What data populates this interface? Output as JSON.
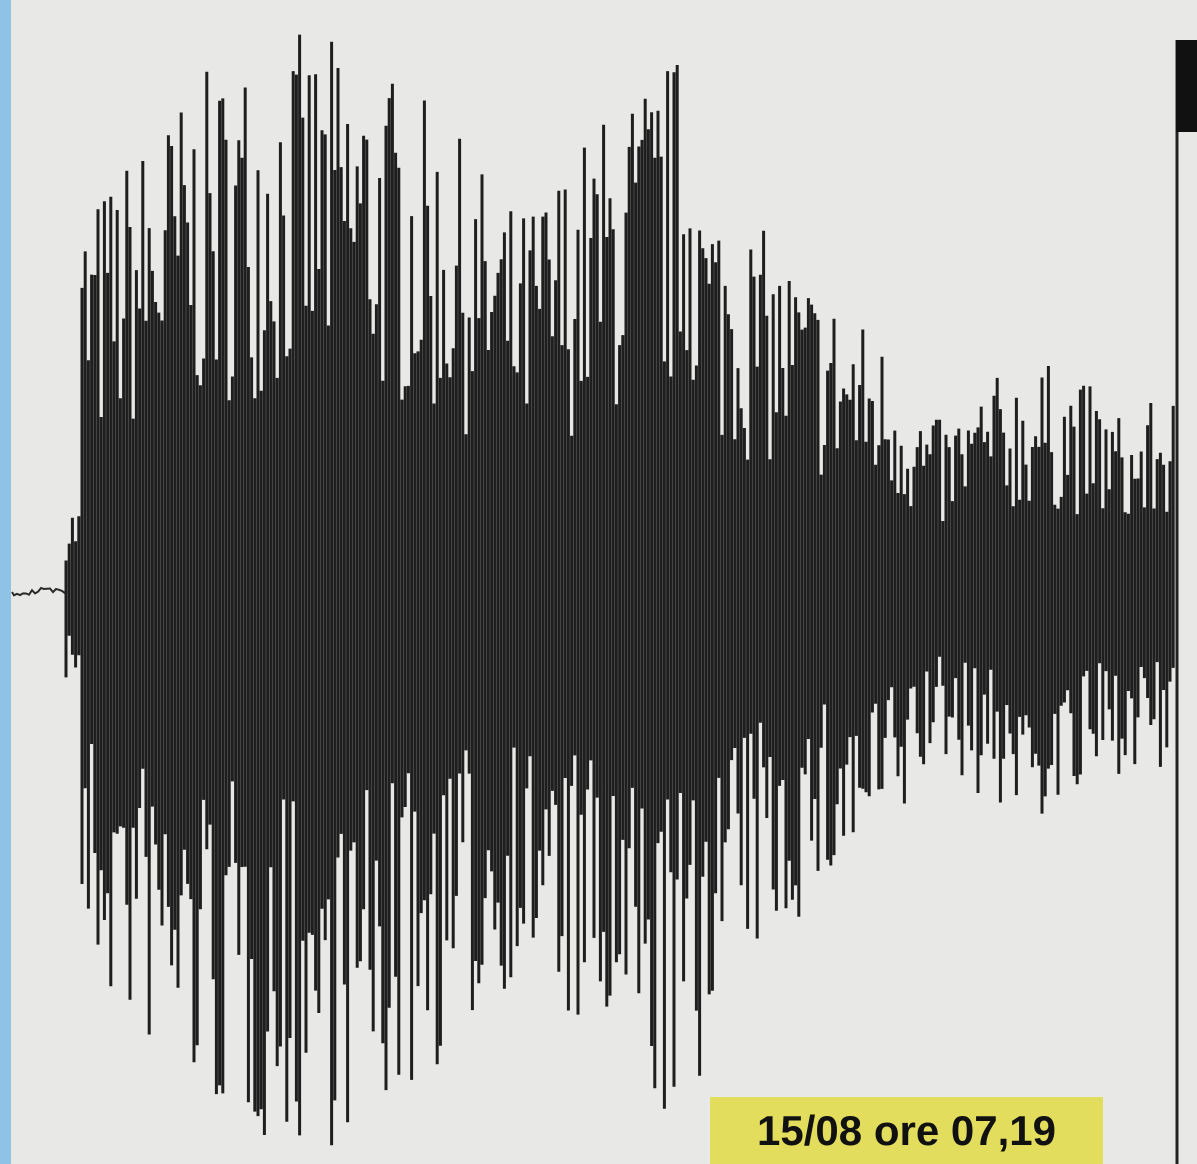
{
  "label": {
    "text": "15/08 ore 07,19"
  }
}
